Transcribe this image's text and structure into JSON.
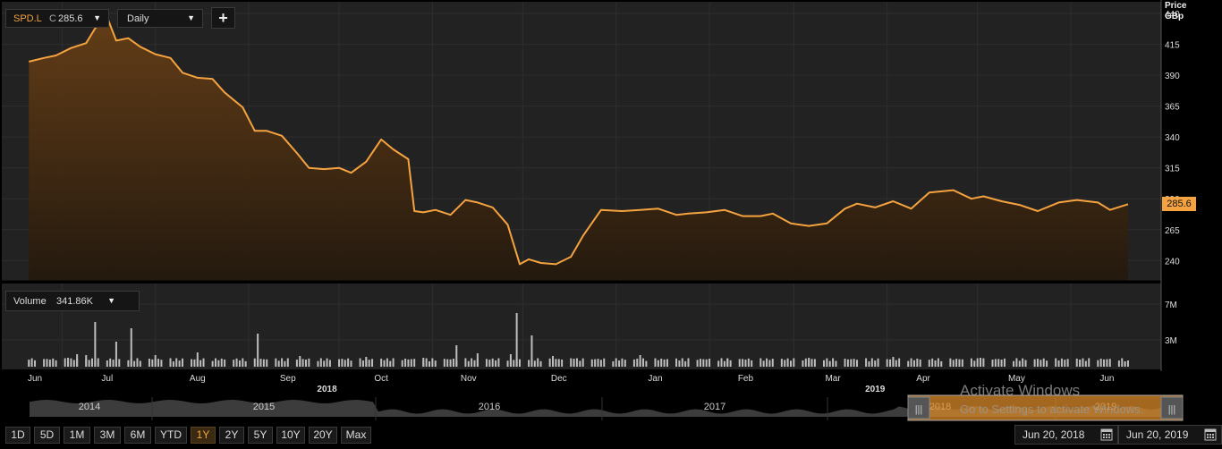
{
  "symbol_control": {
    "ticker": "SPD.L",
    "close_prefix": "C",
    "close_value": "285.6"
  },
  "interval_control": {
    "value": "Daily"
  },
  "add_button": {
    "label": "+"
  },
  "price_axis": {
    "title_line1": "Price",
    "title_line2": "GBp",
    "current_badge": "285.6"
  },
  "volume_control": {
    "label": "Volume",
    "value": "341.86K"
  },
  "navigator": {
    "years": [
      "2014",
      "2015",
      "2016",
      "2017",
      "2018",
      "2019"
    ]
  },
  "range_buttons": [
    "1D",
    "5D",
    "1M",
    "3M",
    "6M",
    "YTD",
    "1Y",
    "2Y",
    "5Y",
    "10Y",
    "20Y",
    "Max"
  ],
  "active_range": "1Y",
  "date_range": {
    "start": "Jun 20, 2018",
    "end": "Jun 20, 2019"
  },
  "watermark": {
    "line1": "Activate Windows",
    "line2": "Go to Settings to activate Windows."
  },
  "colors": {
    "line": "#f5a340",
    "background": "#000000",
    "grid": "#2e2e2e",
    "volume_bar": "#bdbdbd"
  },
  "chart_data": [
    {
      "type": "area",
      "title": "SPD.L",
      "ylabel": "Price GBp",
      "ylim": [
        225,
        448
      ],
      "yticks": [
        240,
        265,
        290,
        315,
        340,
        365,
        390,
        415,
        440
      ],
      "x_month_labels": [
        "Jun",
        "Jul",
        "Aug",
        "Sep",
        "Oct",
        "Nov",
        "Dec",
        "Jan",
        "Feb",
        "Mar",
        "Apr",
        "May",
        "Jun"
      ],
      "x_year_labels": [
        "2018",
        "2019"
      ],
      "x": [
        "2018-06-20",
        "2018-06-25",
        "2018-06-29",
        "2018-07-04",
        "2018-07-09",
        "2018-07-12",
        "2018-07-16",
        "2018-07-19",
        "2018-07-23",
        "2018-07-27",
        "2018-08-01",
        "2018-08-06",
        "2018-08-10",
        "2018-08-15",
        "2018-08-20",
        "2018-08-24",
        "2018-08-30",
        "2018-09-03",
        "2018-09-07",
        "2018-09-12",
        "2018-09-17",
        "2018-09-21",
        "2018-09-26",
        "2018-10-01",
        "2018-10-05",
        "2018-10-10",
        "2018-10-15",
        "2018-10-19",
        "2018-10-24",
        "2018-10-26",
        "2018-10-29",
        "2018-11-02",
        "2018-11-07",
        "2018-11-12",
        "2018-11-16",
        "2018-11-21",
        "2018-11-26",
        "2018-11-30",
        "2018-12-03",
        "2018-12-07",
        "2018-12-12",
        "2018-12-17",
        "2018-12-21",
        "2018-12-27",
        "2019-01-03",
        "2019-01-09",
        "2019-01-15",
        "2019-01-21",
        "2019-01-25",
        "2019-01-31",
        "2019-02-06",
        "2019-02-12",
        "2019-02-18",
        "2019-02-22",
        "2019-02-28",
        "2019-03-06",
        "2019-03-12",
        "2019-03-18",
        "2019-03-22",
        "2019-03-28",
        "2019-04-03",
        "2019-04-09",
        "2019-04-15",
        "2019-04-23",
        "2019-04-29",
        "2019-05-03",
        "2019-05-09",
        "2019-05-15",
        "2019-05-21",
        "2019-05-28",
        "2019-06-03",
        "2019-06-10",
        "2019-06-14",
        "2019-06-20"
      ],
      "series": [
        {
          "values": [
            401,
            404,
            406,
            412,
            416,
            428,
            437,
            418,
            420,
            413,
            407,
            404,
            392,
            388,
            387,
            376,
            364,
            345,
            345,
            341,
            327,
            315,
            314,
            315,
            311,
            320,
            338,
            330,
            322,
            280,
            279,
            281,
            277,
            289,
            287,
            283,
            269,
            237,
            241,
            238,
            237,
            243,
            260,
            281,
            280,
            281,
            282,
            277,
            278,
            279,
            281,
            276,
            276,
            278,
            270,
            268,
            270,
            282,
            286,
            283,
            288,
            282,
            295,
            297,
            290,
            292,
            288,
            285,
            280,
            287,
            289,
            287,
            281,
            285.6
          ]
        }
      ]
    },
    {
      "type": "bar",
      "title": "Volume",
      "ylabel": "Volume",
      "yticks_labels": [
        "3M",
        "7M"
      ],
      "ylim": [
        0,
        8
      ],
      "x": [
        "2018-06-20",
        "2018-06-26",
        "2018-07-03",
        "2018-07-06",
        "2018-07-09",
        "2018-07-12",
        "2018-07-19",
        "2018-07-24",
        "2018-08-01",
        "2018-08-15",
        "2018-09-04",
        "2018-09-18",
        "2018-10-10",
        "2018-10-29",
        "2018-11-09",
        "2018-11-16",
        "2018-11-27",
        "2018-11-29",
        "2018-12-04",
        "2018-12-11",
        "2018-12-18",
        "2019-01-09",
        "2019-02-07",
        "2019-03-06",
        "2019-04-03",
        "2019-05-02",
        "2019-06-04",
        "2019-06-19"
      ],
      "values": [
        0.8,
        0.8,
        1.0,
        1.4,
        1.3,
        5.0,
        2.8,
        4.3,
        1.3,
        1.6,
        3.7,
        1.2,
        1.1,
        1.0,
        2.4,
        1.5,
        1.4,
        6.0,
        3.5,
        1.2,
        0.9,
        1.3,
        0.9,
        1.0,
        1.1,
        1.0,
        0.8,
        0.6
      ]
    }
  ]
}
